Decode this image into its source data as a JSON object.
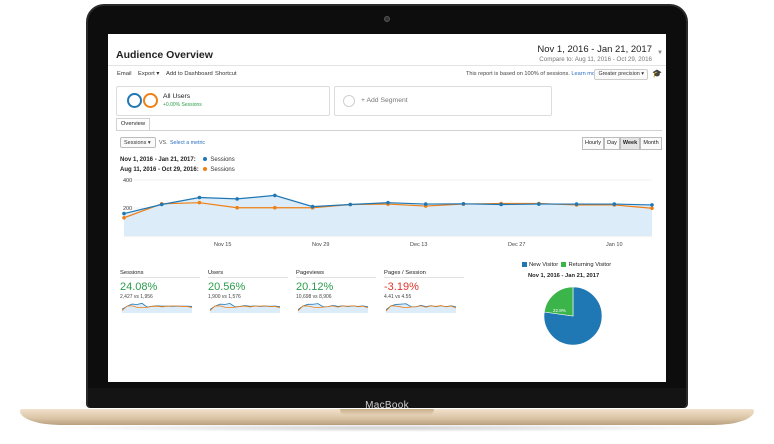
{
  "device": {
    "brand": "MacBook"
  },
  "header": {
    "title": "Audience Overview",
    "date_range": "Nov 1, 2016 - Jan 21, 2017",
    "compare_range": "Compare to: Aug 11, 2016 - Oct 29, 2016"
  },
  "toolbar": {
    "email": "Email",
    "export": "Export ▾",
    "add_dashboard": "Add to Dashboard",
    "shortcut": "Shortcut",
    "sampling_note": "This report is based on 100% of sessions.",
    "learn_more": "Learn more",
    "precision": "Greater precision ▾"
  },
  "segments": {
    "all_users": "All Users",
    "all_users_sub": "+0.00% Sessions",
    "add_segment": "+ Add Segment"
  },
  "tabs": {
    "overview": "Overview"
  },
  "controls": {
    "metric": "Sessions ▾",
    "vs": "VS.",
    "select_metric": "Select a metric",
    "granularity": [
      "Hourly",
      "Day",
      "Week",
      "Month"
    ],
    "active_granularity": "Week"
  },
  "legend": {
    "row1_range": "Nov 1, 2016 - Jan 21, 2017:",
    "row1_name": "Sessions",
    "row2_range": "Aug 11, 2016 - Oct 29, 2016:",
    "row2_name": "Sessions"
  },
  "colors": {
    "primary": "#1f77b4",
    "compare": "#f07f16",
    "green": "#2a9d4c",
    "red": "#e0342c",
    "returning": "#3bb54a"
  },
  "chart_data": {
    "type": "line",
    "y_ticks": [
      "400",
      "200"
    ],
    "ylim": [
      0,
      400
    ],
    "x_labels": [
      "Nov 15",
      "Nov 29",
      "Dec 13",
      "Dec 27",
      "Jan 10"
    ],
    "series": [
      {
        "name": "Sessions",
        "color": "#1f77b4",
        "values": [
          160,
          225,
          275,
          265,
          290,
          210,
          225,
          238,
          228,
          230,
          225,
          228,
          228,
          228,
          222
        ]
      },
      {
        "name": "Sessions",
        "color": "#f07f16",
        "values": [
          130,
          230,
          238,
          202,
          202,
          202,
          225,
          228,
          214,
          228,
          232,
          232,
          222,
          222,
          198
        ]
      }
    ]
  },
  "metrics": [
    {
      "label": "Sessions",
      "value": "24.08%",
      "sub": "2,427 vs 1,956",
      "trend": "up"
    },
    {
      "label": "Users",
      "value": "20.56%",
      "sub": "1,900 vs 1,576",
      "trend": "up"
    },
    {
      "label": "Pageviews",
      "value": "20.12%",
      "sub": "10,698 vs 8,906",
      "trend": "up"
    },
    {
      "label": "Pages / Session",
      "value": "-3.19%",
      "sub": "4.41 vs 4.55",
      "trend": "down"
    }
  ],
  "pie": {
    "new_label": "New Visitor",
    "returning_label": "Returning Visitor",
    "title": "Nov 1, 2016 - Jan 21, 2017",
    "returning_pct_label": "22.8%",
    "new_fraction": 0.772,
    "returning_fraction": 0.228
  }
}
